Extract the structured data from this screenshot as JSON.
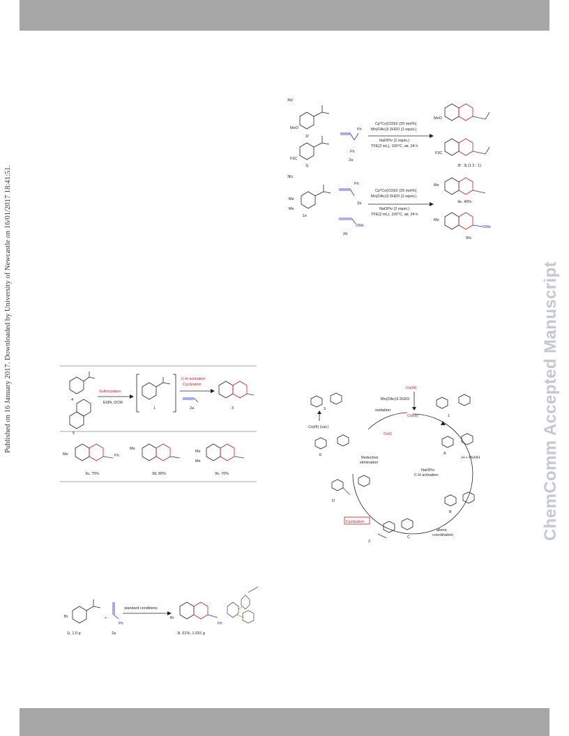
{
  "header": {
    "bar_color": "#a6a6a6"
  },
  "footer": {
    "bar_color": "#a6a6a6"
  },
  "sidebar_left": {
    "text": "Published on 16 January 2017. Downloaded by University of Newcastle on 16/01/2017 18:41:51."
  },
  "sidebar_right": {
    "text": "ChemComm Accepted Manuscript",
    "color": "#c3c8d2"
  },
  "scheme_top_right": {
    "label_a": "3a)",
    "label_b": "3b)",
    "cmpd_1f": "1f",
    "cmpd_1j": "1j",
    "cmpd_2a": "2a",
    "cmpd_1e": "1e",
    "cmpd_2a_b": "2a",
    "cmpd_2d": "2d",
    "ph": "Ph",
    "ome": "OMe",
    "f3c": "F3C",
    "meo": "MeO",
    "me": "Me",
    "cond_a": [
      "Cp*Co(CO)I2 (20 mol%)",
      "Mn(OAc)3·2H2O (2 equiv.)",
      "NaOPiv (2 equiv.)",
      "TFE(2 mL), 100°C, air, 24 h"
    ],
    "cond_b": [
      "Cp*Co(CO)I2 (20 mol%)",
      "Mn(OAc)3·2H2O (2 equiv.)",
      "NaOPiv (2 equiv.)",
      "TFE(2 mL), 100°C, air, 24 h"
    ],
    "product_a": "3f : 3j (1.2 : 1)",
    "product_b1": "3e, 40%",
    "product_b2": "9%"
  },
  "scheme_left": {
    "cmpd_4": "4",
    "cmpd_5": "5",
    "cmpd_1": "1",
    "cmpd_2a": "2a",
    "cmpd_3": "3",
    "step1": "Sulfonylation",
    "step1_cond": "Et3N, DCM",
    "step2_line1": "C-H activation",
    "step2_line2": "Cyclization",
    "prod1": "3u, 75%",
    "prod2": "3d, 85%",
    "prod3": "3e, 70%",
    "me": "Me",
    "ph": "Ph"
  },
  "scheme_bottom": {
    "reactant": "1i, 1.0 g",
    "reagent": "2a",
    "arrow_label": "standard conditions",
    "product": "3i, 61%, 1.015 g",
    "br": "Br",
    "ph": "Ph"
  },
  "mechanism": {
    "catalyst_top": "Co(III)",
    "oxidant": "Mn(OAc)3·2H2O",
    "active": "Co(III)",
    "oxidation": "oxidation",
    "co1": "Co(I)",
    "reductive": [
      "Reductive",
      "elimination"
    ],
    "int_a": "A",
    "int_b": "B",
    "int_c": "C",
    "int_d": "D",
    "int_e": "E",
    "cmpd_1": "1",
    "cmpd_3": "3",
    "cmpd_2": "2",
    "cmd_label": [
      "NaOPiv",
      "C-H activation"
    ],
    "h_label": "H + PivOH",
    "alkyne_coord": [
      "allene",
      "coordination"
    ],
    "cyclization": "Cyclization",
    "decoord": "Co(III) (cat.)",
    "colors": {
      "blue": "#2b2bd6",
      "red": "#d01818"
    }
  }
}
